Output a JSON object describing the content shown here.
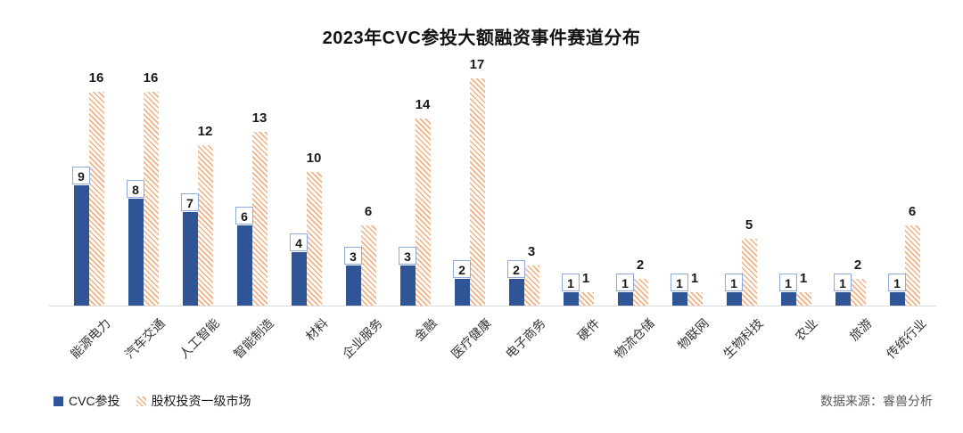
{
  "source": {
    "text": "数据来源：睿兽分析"
  },
  "colors": {
    "cvc_bar": "#2F5597",
    "market_bar_hatch": "#F4B183",
    "value_box_border": "#8FAADC",
    "axis_line": "#D9D9D9",
    "source_text": "#595959"
  },
  "chart_data": {
    "type": "bar",
    "title": "2023年CVC参投大额融资事件赛道分布",
    "categories": [
      "能源电力",
      "汽车交通",
      "人工智能",
      "智能制造",
      "材料",
      "企业服务",
      "金融",
      "医疗健康",
      "电子商务",
      "硬件",
      "物流仓储",
      "物联网",
      "生物科技",
      "农业",
      "旅游",
      "传统行业"
    ],
    "series": [
      {
        "name": "CVC参投",
        "style": "solid-blue",
        "values": [
          9,
          8,
          7,
          6,
          4,
          3,
          3,
          2,
          2,
          1,
          1,
          1,
          1,
          1,
          1,
          1
        ]
      },
      {
        "name": "股权投资一级市场",
        "style": "hatch-orange",
        "values": [
          16,
          16,
          12,
          13,
          10,
          6,
          14,
          17,
          3,
          1,
          2,
          1,
          5,
          1,
          2,
          6
        ]
      }
    ],
    "xlabel": "",
    "ylabel": "",
    "ylim": [
      0,
      18
    ],
    "grid": false,
    "value_labels": "shown",
    "cvc_labels_boxed": true,
    "legend_position": "bottom-left",
    "x_tick_rotation": -45
  }
}
